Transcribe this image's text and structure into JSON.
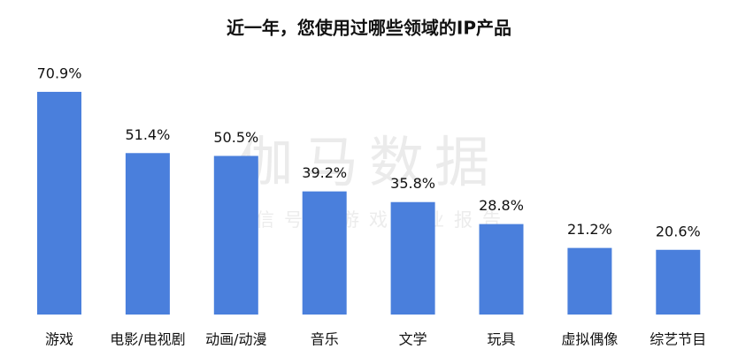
{
  "chart_data": {
    "type": "bar",
    "title": "近一年，您使用过哪些领域的IP产品",
    "categories": [
      "游戏",
      "电影/电视剧",
      "动画/动漫",
      "音乐",
      "文学",
      "玩具",
      "虚拟偶像",
      "综艺节目"
    ],
    "values": [
      70.9,
      51.4,
      50.5,
      39.2,
      35.8,
      28.8,
      21.2,
      20.6
    ],
    "value_labels": [
      "70.9%",
      "51.4%",
      "50.5%",
      "39.2%",
      "35.8%",
      "28.8%",
      "21.2%",
      "20.6%"
    ],
    "color": "#4a7fdc",
    "watermark": "伽马数据",
    "watermark_subtitle": "微信号：游戏产业报告"
  }
}
